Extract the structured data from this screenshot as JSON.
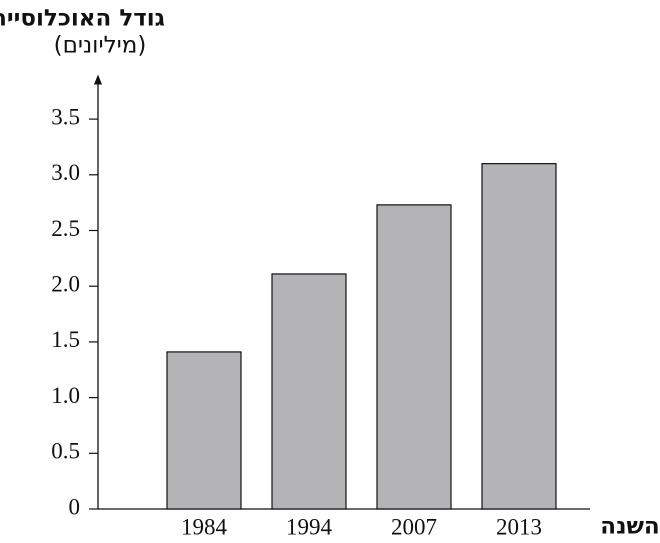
{
  "chart_data": {
    "type": "bar",
    "title": "גודל האוכלוסייה",
    "subtitle": "(מיליונים)",
    "x_label": "השנה",
    "categories": [
      "1984",
      "1994",
      "2007",
      "2013"
    ],
    "values": [
      1.41,
      2.11,
      2.73,
      3.1
    ],
    "color": "#b4b4b7",
    "ylim": [
      0,
      3.9
    ],
    "yticks": [
      0,
      0.5,
      {
        "value": 1,
        "label": "1.0"
      },
      1.5,
      {
        "value": 2,
        "label": "2.0"
      },
      2.5,
      {
        "value": 3,
        "label": "3.0"
      },
      3.5
    ],
    "grid": false
  }
}
